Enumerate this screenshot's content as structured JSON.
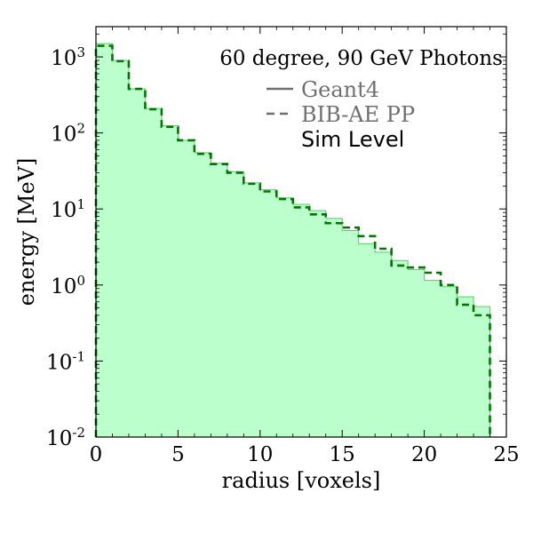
{
  "colors": {
    "fill": "#bbffcc",
    "geant4_line": "#55cc66",
    "bibae_line": "#007700",
    "legend_gray": "#6f6f6f",
    "text": "#000000"
  },
  "chart_data": {
    "type": "histogram",
    "title": "",
    "xlabel": "radius [voxels]",
    "ylabel": "energy [MeV]",
    "xlim": [
      0,
      25
    ],
    "ylim": [
      0.01,
      2500
    ],
    "yscale": "log",
    "grid": false,
    "xticks": [
      "0",
      "5",
      "10",
      "15",
      "20",
      "25"
    ],
    "yticks": [
      {
        "base": "10",
        "exp": "-2",
        "value": 0.01
      },
      {
        "base": "10",
        "exp": "-1",
        "value": 0.1
      },
      {
        "base": "10",
        "exp": "0",
        "value": 1
      },
      {
        "base": "10",
        "exp": "1",
        "value": 10
      },
      {
        "base": "10",
        "exp": "2",
        "value": 100
      },
      {
        "base": "10",
        "exp": "3",
        "value": 1000
      }
    ],
    "annotation": "60 degree, 90 GeV Photons",
    "bin_edges": [
      0,
      1,
      2,
      3,
      4,
      5,
      6,
      7,
      8,
      9,
      10,
      11,
      12,
      13,
      14,
      15,
      16,
      17,
      18,
      19,
      20,
      21,
      22,
      23,
      24
    ],
    "series": [
      {
        "name": "Geant4",
        "style": "solid",
        "filled": true,
        "values": [
          1500,
          900,
          380,
          210,
          125,
          80,
          55,
          40,
          31,
          22,
          18,
          14,
          11.5,
          9.5,
          7.5,
          5.2,
          3.5,
          2.7,
          2.1,
          1.6,
          1.15,
          0.95,
          0.7,
          0.52
        ]
      },
      {
        "name": "BIB-AE PP",
        "style": "dashed",
        "filled": false,
        "values": [
          1400,
          880,
          380,
          205,
          120,
          80,
          53,
          39,
          30,
          21.5,
          17,
          13.5,
          10.5,
          8.5,
          6.5,
          5.7,
          4.4,
          3.0,
          1.8,
          1.7,
          1.45,
          1.0,
          0.55,
          0.4
        ]
      }
    ],
    "legend": {
      "placement": "top-right",
      "entries": [
        "Geant4",
        "BIB-AE PP"
      ],
      "note": "Sim Level"
    }
  }
}
